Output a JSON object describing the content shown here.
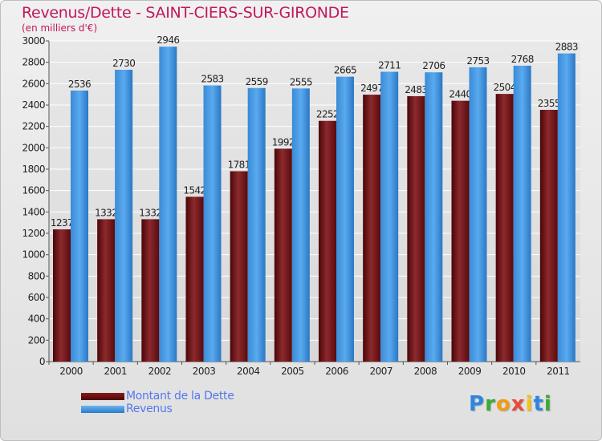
{
  "chart_data": {
    "type": "bar",
    "title": "Revenus/Dette - SAINT-CIERS-SUR-GIRONDE",
    "subtitle": "(en milliers d'€)",
    "categories": [
      "2000",
      "2001",
      "2002",
      "2003",
      "2004",
      "2005",
      "2006",
      "2007",
      "2008",
      "2009",
      "2010",
      "2011"
    ],
    "series": [
      {
        "name": "Montant de la Dette",
        "color": "#6b0f12",
        "values": [
          1237,
          1332,
          1332,
          1542,
          1781,
          1992,
          2252,
          2497,
          2483,
          2440,
          2504,
          2355
        ]
      },
      {
        "name": "Revenus",
        "color": "#3d8fdc",
        "values": [
          2536,
          2730,
          2946,
          2583,
          2559,
          2555,
          2665,
          2711,
          2706,
          2753,
          2768,
          2883
        ]
      }
    ],
    "ylim": [
      0,
      3000
    ],
    "yticks": [
      0,
      200,
      400,
      600,
      800,
      1000,
      1200,
      1400,
      1600,
      1800,
      2000,
      2200,
      2400,
      2600,
      2800,
      3000
    ],
    "grid": true,
    "legend_position": "bottom-left"
  },
  "brand": {
    "text": "Proxiti",
    "letters": [
      "P",
      "r",
      "o",
      "x",
      "i",
      "t",
      "i"
    ],
    "colors": [
      "#2e86de",
      "#3aaa35",
      "#f39c12",
      "#e74c3c",
      "#f1c40f",
      "#2e86de",
      "#3aaa35"
    ]
  }
}
